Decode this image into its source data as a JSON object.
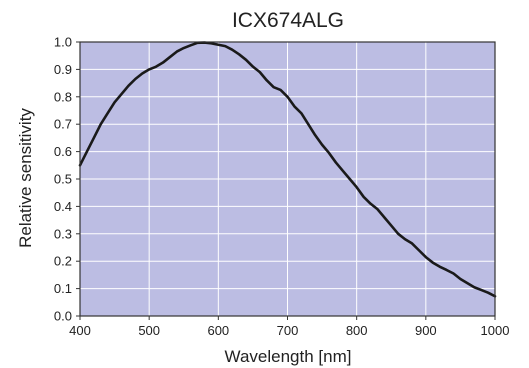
{
  "chart_data": {
    "type": "line",
    "title": "ICX674ALG",
    "xlabel": "Wavelength [nm]",
    "ylabel": "Relative sensitivity",
    "xlim": [
      400,
      1000
    ],
    "ylim": [
      0.0,
      1.0
    ],
    "x_ticks": [
      "400",
      "500",
      "600",
      "700",
      "800",
      "900",
      "1000"
    ],
    "y_ticks": [
      "0.0",
      "0.1",
      "0.2",
      "0.3",
      "0.4",
      "0.5",
      "0.6",
      "0.7",
      "0.8",
      "0.9",
      "1.0"
    ],
    "grid": true,
    "legend": "none",
    "colors": {
      "plot_background": "#bcbde3",
      "grid": "#ffffff",
      "line": "#1a1a1a",
      "frame": "#333333"
    },
    "series": [
      {
        "x": [
          400,
          410,
          420,
          430,
          440,
          450,
          460,
          470,
          480,
          490,
          500,
          510,
          520,
          530,
          540,
          550,
          560,
          570,
          580,
          590,
          600,
          610,
          620,
          630,
          640,
          650,
          660,
          670,
          680,
          690,
          700,
          710,
          720,
          730,
          740,
          750,
          760,
          770,
          780,
          790,
          800,
          810,
          820,
          830,
          840,
          850,
          860,
          870,
          880,
          890,
          900,
          910,
          920,
          930,
          940,
          950,
          960,
          970,
          980,
          990,
          1000
        ],
        "y": [
          0.55,
          0.6,
          0.65,
          0.7,
          0.74,
          0.78,
          0.81,
          0.84,
          0.865,
          0.885,
          0.9,
          0.91,
          0.925,
          0.945,
          0.965,
          0.978,
          0.988,
          0.997,
          0.998,
          0.995,
          0.99,
          0.985,
          0.972,
          0.955,
          0.935,
          0.91,
          0.89,
          0.86,
          0.835,
          0.825,
          0.8,
          0.765,
          0.74,
          0.7,
          0.66,
          0.625,
          0.595,
          0.56,
          0.53,
          0.5,
          0.47,
          0.435,
          0.41,
          0.39,
          0.36,
          0.33,
          0.3,
          0.28,
          0.265,
          0.24,
          0.215,
          0.195,
          0.18,
          0.168,
          0.155,
          0.135,
          0.12,
          0.105,
          0.095,
          0.085,
          0.072
        ]
      }
    ]
  }
}
